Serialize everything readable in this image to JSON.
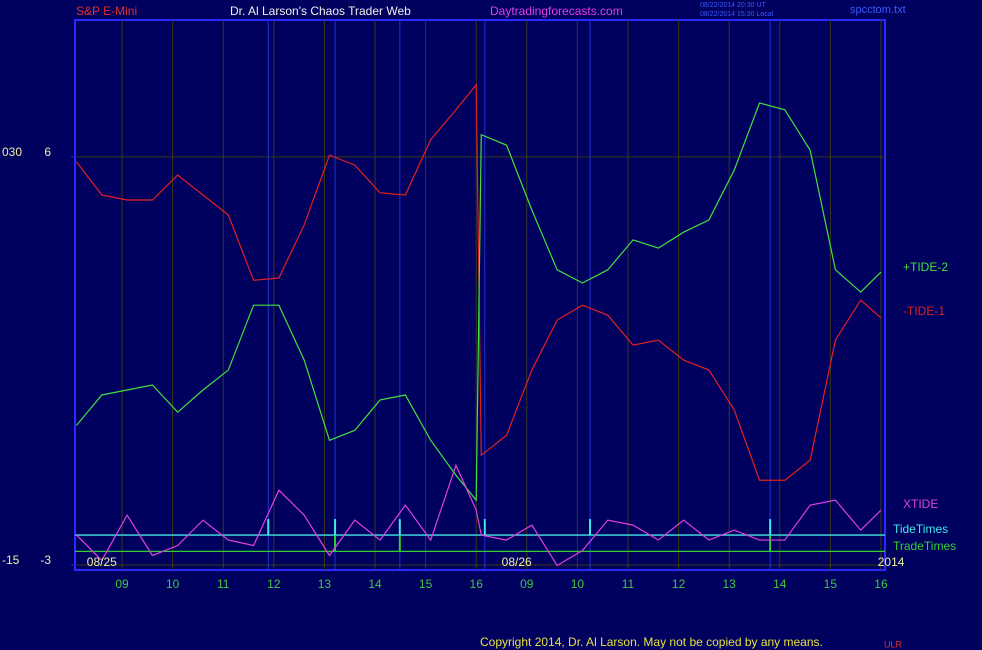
{
  "chart_data": {
    "type": "line",
    "header": {
      "symbol": "S&P E-Mini",
      "title": "Dr. Al Larson's Chaos Trader Web",
      "site": "Daytradingforecasts.com",
      "timestamps": [
        "08/22/2014 20:30 UT",
        "08/22/2014 15:30 Local"
      ],
      "file": "spcctom.txt"
    },
    "footer": {
      "copyright": "Copyright 2014, Dr. Al Larson. May not be copied by any means.",
      "mark": "ULR"
    },
    "annotations": [
      {
        "text": "08/25",
        "x": 0.6
      },
      {
        "text": "08/26",
        "x": 8.8
      },
      {
        "text": "2014",
        "x": 16.2
      }
    ],
    "xlim": [
      0.07,
      16.08
    ],
    "xticks": [
      {
        "value": 1,
        "label": "09"
      },
      {
        "value": 2,
        "label": "10"
      },
      {
        "value": 3,
        "label": "11"
      },
      {
        "value": 4,
        "label": "12"
      },
      {
        "value": 5,
        "label": "13"
      },
      {
        "value": 6,
        "label": "14"
      },
      {
        "value": 7,
        "label": "15"
      },
      {
        "value": 8,
        "label": "16"
      },
      {
        "value": 9,
        "label": "09"
      },
      {
        "value": 10,
        "label": "10"
      },
      {
        "value": 11,
        "label": "11"
      },
      {
        "value": 12,
        "label": "12"
      },
      {
        "value": 13,
        "label": "13"
      },
      {
        "value": 14,
        "label": "14"
      },
      {
        "value": 15,
        "label": "15"
      },
      {
        "value": 16,
        "label": "16"
      }
    ],
    "ylim": [
      -3.11,
      9.02
    ],
    "yticks": [
      -3,
      6
    ],
    "y2lim": [
      -15.55,
      45.1
    ],
    "y2ticks": [
      {
        "value": 30,
        "label": "030"
      },
      -15
    ],
    "grid": true,
    "x": [
      0.1,
      0.6,
      1.1,
      1.6,
      2.1,
      2.6,
      3.1,
      3.6,
      4.1,
      4.6,
      5.1,
      5.6,
      6.1,
      6.6,
      7.1,
      7.6,
      8.0,
      8.1,
      8.6,
      9.1,
      9.6,
      10.1,
      10.6,
      11.1,
      11.6,
      12.1,
      12.6,
      13.1,
      13.6,
      14.1,
      14.6,
      15.1,
      15.6,
      16.0
    ],
    "series": [
      {
        "name": "-TIDE-1",
        "color": "#e02020",
        "values": [
          5.89,
          5.16,
          5.05,
          5.05,
          5.6,
          5.16,
          4.72,
          3.28,
          3.33,
          4.5,
          6.04,
          5.82,
          5.21,
          5.16,
          6.38,
          7.04,
          7.59,
          -0.58,
          -0.14,
          1.3,
          2.4,
          2.73,
          2.51,
          1.85,
          1.96,
          1.52,
          1.3,
          0.42,
          -1.13,
          -1.13,
          -0.69,
          1.96,
          2.84,
          2.45
        ]
      },
      {
        "name": "+TIDE-2",
        "color": "#40e040",
        "values": [
          0.08,
          0.75,
          0.86,
          0.97,
          0.37,
          0.86,
          1.3,
          2.73,
          2.73,
          1.52,
          -0.25,
          -0.03,
          0.64,
          0.75,
          -0.25,
          -1.02,
          -1.57,
          6.49,
          6.26,
          4.83,
          3.51,
          3.22,
          3.51,
          4.17,
          3.99,
          4.34,
          4.61,
          5.71,
          7.19,
          7.04,
          6.15,
          3.51,
          3.02,
          3.46
        ]
      },
      {
        "name": "XTIDE",
        "color": "#e040e0",
        "values": [
          -2.34,
          -2.9,
          -1.9,
          -2.79,
          -2.57,
          -2.01,
          -2.45,
          -2.57,
          -1.35,
          -1.9,
          -2.79,
          -2.01,
          -2.45,
          -1.68,
          -2.45,
          -0.8,
          -1.79,
          -2.34,
          -2.45,
          -2.12,
          -3.01,
          -2.68,
          -2.01,
          -2.12,
          -2.45,
          -2.01,
          -2.45,
          -2.23,
          -2.45,
          -2.45,
          -1.68,
          -1.57,
          -2.23,
          -1.79
        ]
      }
    ],
    "events": [
      {
        "name": "TideTimes",
        "color": "#40e8e8",
        "level": -2.34,
        "x": [
          3.89,
          5.21,
          6.49,
          8.17,
          10.25,
          13.81
        ]
      },
      {
        "name": "TradeTimes",
        "color": "#30d030",
        "level": -2.7,
        "x": [
          5.21,
          6.49,
          13.81
        ]
      }
    ]
  }
}
